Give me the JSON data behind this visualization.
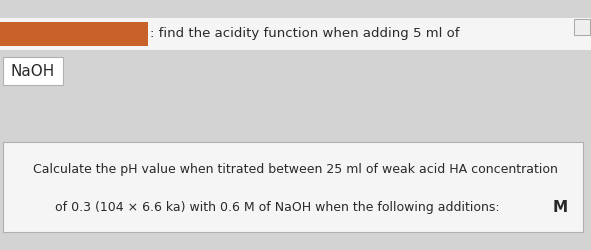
{
  "background_color": "#d3d3d3",
  "top_bar_bg": "#f5f5f5",
  "top_bar_text": ": find the acidity function when adding 5 ml of",
  "top_bar_text_color": "#2a2a2a",
  "redacted_color": "#c8622a",
  "naoh_box_text": "NaOH",
  "naoh_box_bg": "#ffffff",
  "naoh_text_color": "#2a2a2a",
  "bottom_box_line1": "Calculate the pH value when titrated between 25 ml of weak acid HA concentration",
  "bottom_box_line2": "of 0.3 (104 × 6.6 ka) with 0.6 M of NaOH when the following additions:  ",
  "bottom_box_line2_bold": "M",
  "bottom_box_bg": "#f5f5f5",
  "bottom_text_color": "#2a2a2a",
  "small_box_bg": "#eeeeee",
  "font_size_main": 9.5,
  "font_size_naoh": 11,
  "font_size_bottom": 9.0,
  "font_size_M": 11
}
